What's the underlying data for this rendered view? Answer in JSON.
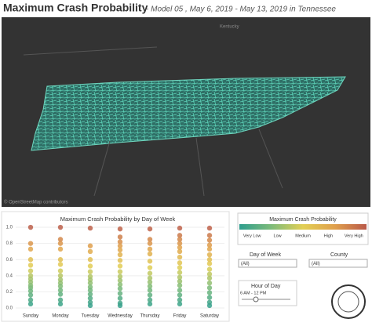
{
  "header": {
    "title": "Maximum Crash Probability",
    "subtitle": "- Model 05 ,  May 6, 2019 - May 13, 2019 in Tennessee"
  },
  "map": {
    "state_label": "Kentucky",
    "attribution": "© OpenStreetMap contributors"
  },
  "chart_data": {
    "type": "strip",
    "title": "Maximum Crash Probability by Day of Week",
    "categories": [
      "Sunday",
      "Monday",
      "Tuesday",
      "Wednesday",
      "Thursday",
      "Friday",
      "Saturday"
    ],
    "values": [
      [
        1.0,
        0.8,
        0.73,
        0.6,
        0.53,
        0.46,
        0.4,
        0.36,
        0.32,
        0.28,
        0.25,
        0.21,
        0.16,
        0.1,
        0.05
      ],
      [
        1.0,
        0.85,
        0.8,
        0.73,
        0.6,
        0.54,
        0.46,
        0.4,
        0.35,
        0.31,
        0.27,
        0.22,
        0.17,
        0.1,
        0.05
      ],
      [
        0.99,
        0.77,
        0.7,
        0.6,
        0.52,
        0.45,
        0.39,
        0.35,
        0.31,
        0.26,
        0.22,
        0.17,
        0.12,
        0.07,
        0.03
      ],
      [
        0.98,
        0.88,
        0.82,
        0.77,
        0.72,
        0.66,
        0.59,
        0.52,
        0.45,
        0.39,
        0.34,
        0.29,
        0.24,
        0.18,
        0.12,
        0.06,
        0.03
      ],
      [
        0.98,
        0.85,
        0.8,
        0.73,
        0.67,
        0.58,
        0.5,
        0.43,
        0.37,
        0.32,
        0.27,
        0.22,
        0.16,
        0.1,
        0.05
      ],
      [
        0.99,
        0.9,
        0.85,
        0.8,
        0.75,
        0.7,
        0.63,
        0.56,
        0.5,
        0.44,
        0.38,
        0.33,
        0.28,
        0.22,
        0.16,
        0.1,
        0.05
      ],
      [
        0.99,
        0.9,
        0.84,
        0.78,
        0.73,
        0.66,
        0.6,
        0.55,
        0.48,
        0.42,
        0.37,
        0.31,
        0.25,
        0.19,
        0.13,
        0.07,
        0.03
      ]
    ],
    "ylim": [
      0,
      1.02
    ],
    "yticks": [
      {
        "value": 0,
        "label": "0.0"
      },
      0.2,
      0.4,
      0.6,
      0.8,
      {
        "value": 1,
        "label": "1.0"
      }
    ],
    "grid": true
  },
  "legend": {
    "title": "Maximum Crash Probability",
    "labels": [
      "Very Low",
      "Low",
      "Medium",
      "High",
      "Very High"
    ],
    "colors": [
      "#2e9e8e",
      "#7dbb7a",
      "#e2cf55",
      "#e0a04c",
      "#b9594a"
    ]
  },
  "filters": {
    "day_title": "Day of Week",
    "day_value": "(All)",
    "county_title": "County",
    "county_value": "(All)",
    "hour_title": "Hour of Day",
    "hour_value": "6 AM - 12 PM"
  }
}
